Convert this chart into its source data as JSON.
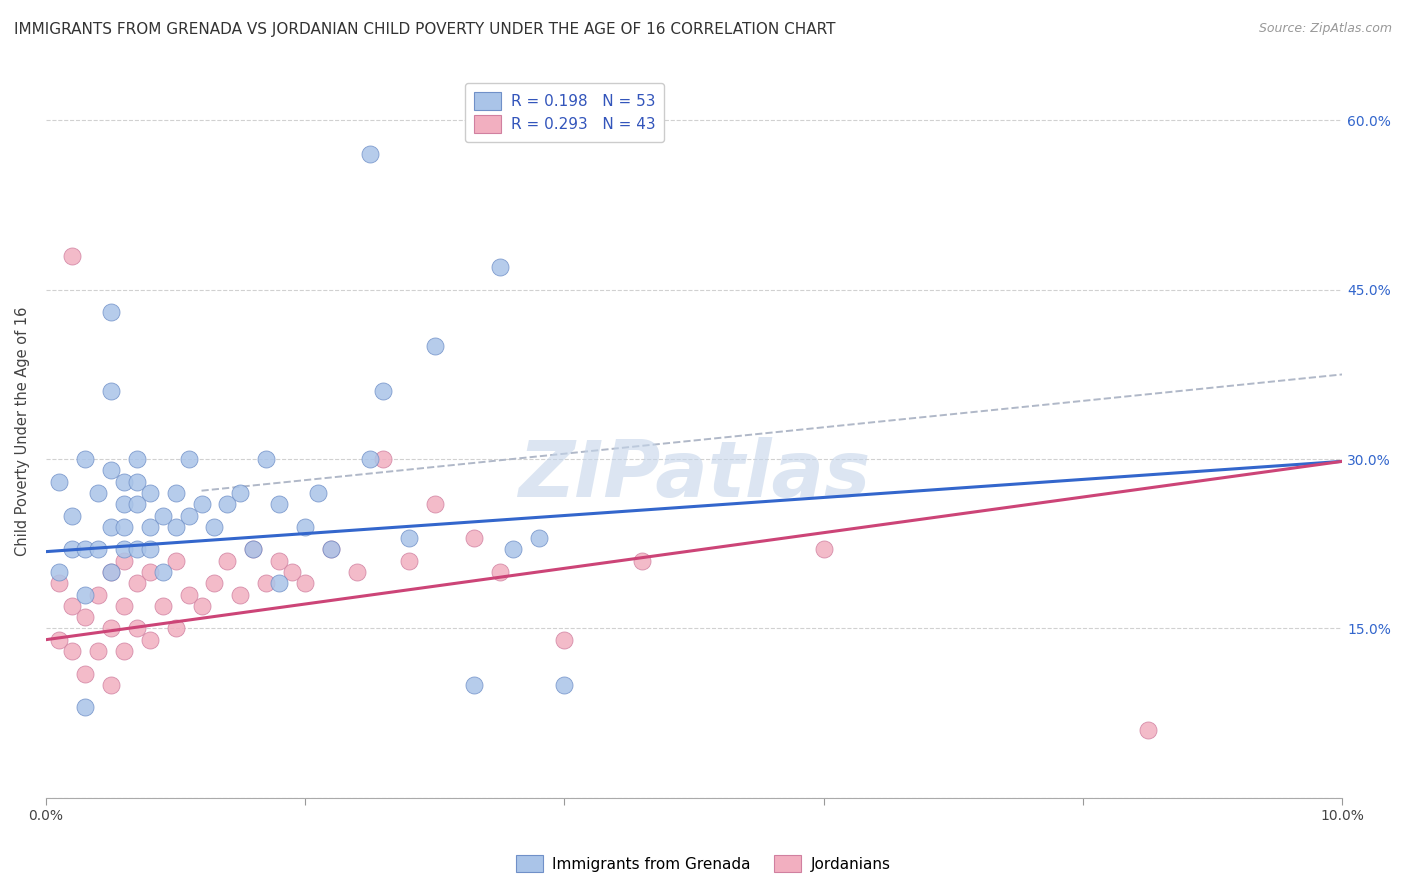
{
  "title": "IMMIGRANTS FROM GRENADA VS JORDANIAN CHILD POVERTY UNDER THE AGE OF 16 CORRELATION CHART",
  "source": "Source: ZipAtlas.com",
  "ylabel": "Child Poverty Under the Age of 16",
  "xlim": [
    0.0,
    0.1
  ],
  "ylim": [
    0.0,
    0.65
  ],
  "xtick_vals": [
    0.0,
    0.02,
    0.04,
    0.06,
    0.08,
    0.1
  ],
  "xtick_labels": [
    "0.0%",
    "",
    "",
    "",
    "",
    "10.0%"
  ],
  "ytick_vals": [
    0.0,
    0.15,
    0.3,
    0.45,
    0.6
  ],
  "ytick_labels_right": [
    "",
    "15.0%",
    "30.0%",
    "45.0%",
    "60.0%"
  ],
  "blue_R": 0.198,
  "blue_N": 53,
  "pink_R": 0.293,
  "pink_N": 43,
  "blue_color": "#aac4e8",
  "pink_color": "#f2afc0",
  "blue_line_color": "#3366cc",
  "pink_line_color": "#cc4477",
  "dash_line_color": "#b0b8c8",
  "watermark": "ZIPatlas",
  "background_color": "#ffffff",
  "grid_color": "#cccccc",
  "blue_line_x": [
    0.0,
    0.1
  ],
  "blue_line_y": [
    0.218,
    0.298
  ],
  "pink_line_x": [
    0.0,
    0.1
  ],
  "pink_line_y": [
    0.14,
    0.298
  ],
  "dash_line_x": [
    0.012,
    0.1
  ],
  "dash_line_y": [
    0.272,
    0.375
  ],
  "blue_scatter_x": [
    0.002,
    0.003,
    0.001,
    0.002,
    0.001,
    0.003,
    0.003,
    0.004,
    0.004,
    0.005,
    0.005,
    0.006,
    0.005,
    0.006,
    0.006,
    0.006,
    0.007,
    0.007,
    0.007,
    0.007,
    0.008,
    0.008,
    0.008,
    0.009,
    0.009,
    0.01,
    0.01,
    0.011,
    0.011,
    0.012,
    0.013,
    0.014,
    0.015,
    0.016,
    0.017,
    0.018,
    0.02,
    0.021,
    0.022,
    0.025,
    0.026,
    0.028,
    0.03,
    0.033,
    0.036,
    0.038,
    0.025,
    0.035,
    0.018,
    0.04,
    0.005,
    0.005,
    0.003
  ],
  "blue_scatter_y": [
    0.25,
    0.3,
    0.2,
    0.22,
    0.28,
    0.22,
    0.18,
    0.27,
    0.22,
    0.24,
    0.29,
    0.26,
    0.2,
    0.22,
    0.28,
    0.24,
    0.26,
    0.3,
    0.22,
    0.28,
    0.24,
    0.27,
    0.22,
    0.25,
    0.2,
    0.27,
    0.24,
    0.3,
    0.25,
    0.26,
    0.24,
    0.26,
    0.27,
    0.22,
    0.3,
    0.26,
    0.24,
    0.27,
    0.22,
    0.3,
    0.36,
    0.23,
    0.4,
    0.1,
    0.22,
    0.23,
    0.57,
    0.47,
    0.19,
    0.1,
    0.43,
    0.36,
    0.08
  ],
  "pink_scatter_x": [
    0.001,
    0.001,
    0.002,
    0.002,
    0.003,
    0.003,
    0.004,
    0.004,
    0.005,
    0.005,
    0.005,
    0.006,
    0.006,
    0.006,
    0.007,
    0.007,
    0.008,
    0.008,
    0.009,
    0.01,
    0.01,
    0.011,
    0.012,
    0.013,
    0.014,
    0.015,
    0.016,
    0.017,
    0.018,
    0.019,
    0.02,
    0.022,
    0.024,
    0.026,
    0.028,
    0.03,
    0.033,
    0.035,
    0.04,
    0.046,
    0.06,
    0.002,
    0.085
  ],
  "pink_scatter_y": [
    0.14,
    0.19,
    0.13,
    0.17,
    0.11,
    0.16,
    0.13,
    0.18,
    0.1,
    0.15,
    0.2,
    0.13,
    0.17,
    0.21,
    0.15,
    0.19,
    0.14,
    0.2,
    0.17,
    0.15,
    0.21,
    0.18,
    0.17,
    0.19,
    0.21,
    0.18,
    0.22,
    0.19,
    0.21,
    0.2,
    0.19,
    0.22,
    0.2,
    0.3,
    0.21,
    0.26,
    0.23,
    0.2,
    0.14,
    0.21,
    0.22,
    0.48,
    0.06
  ],
  "title_fontsize": 11,
  "source_fontsize": 9,
  "axis_label_fontsize": 10.5,
  "tick_fontsize": 10,
  "legend_fontsize": 11,
  "legend_text_color": "#3355bb"
}
